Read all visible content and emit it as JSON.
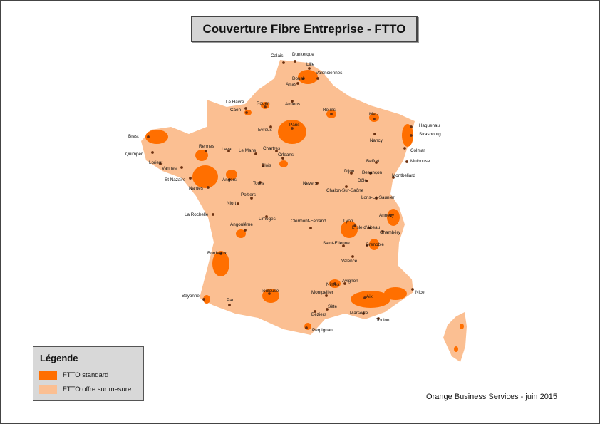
{
  "title": "Couverture Fibre Entreprise - FTTO",
  "legend": {
    "title": "Légende",
    "items": [
      {
        "label": "FTTO standard",
        "color": "#ff6f00"
      },
      {
        "label": "FTTO offre sur mesure",
        "color": "#fbbf92"
      }
    ]
  },
  "footer": "Orange Business Services - juin 2015",
  "map_colors": {
    "standard": "#ff6f00",
    "sur_mesure": "#fbbf92",
    "city_dot": "#6b3010"
  },
  "cities": [
    {
      "name": "Calais"
    },
    {
      "name": "Dunkerque"
    },
    {
      "name": "Lille"
    },
    {
      "name": "Valenciennes"
    },
    {
      "name": "Douai"
    },
    {
      "name": "Arras"
    },
    {
      "name": "Le Havre"
    },
    {
      "name": "Rouen"
    },
    {
      "name": "Amiens"
    },
    {
      "name": "Caen"
    },
    {
      "name": "Reims"
    },
    {
      "name": "Metz"
    },
    {
      "name": "Haguenau"
    },
    {
      "name": "Strasbourg"
    },
    {
      "name": "Brest"
    },
    {
      "name": "Evreux"
    },
    {
      "name": "Paris"
    },
    {
      "name": "Nancy"
    },
    {
      "name": "Colmar"
    },
    {
      "name": "Mulhouse"
    },
    {
      "name": "Quimper"
    },
    {
      "name": "Rennes"
    },
    {
      "name": "Laval"
    },
    {
      "name": "Le Mans"
    },
    {
      "name": "Chartres"
    },
    {
      "name": "Orleans"
    },
    {
      "name": "Belfort"
    },
    {
      "name": "Lorient"
    },
    {
      "name": "Vannes"
    },
    {
      "name": "Blois"
    },
    {
      "name": "Dijon"
    },
    {
      "name": "Besançon"
    },
    {
      "name": "Montbeliard"
    },
    {
      "name": "St Nazaire"
    },
    {
      "name": "Angers"
    },
    {
      "name": "Tours"
    },
    {
      "name": "Nevers"
    },
    {
      "name": "Dôle"
    },
    {
      "name": "Nantes"
    },
    {
      "name": "Chalon-Sur-Saône"
    },
    {
      "name": "Poitiers"
    },
    {
      "name": "Lons-Le-Saunier"
    },
    {
      "name": "Niort"
    },
    {
      "name": "La Rochelle"
    },
    {
      "name": "Limoges"
    },
    {
      "name": "Annecy"
    },
    {
      "name": "Clermont-Ferrand"
    },
    {
      "name": "Lyon"
    },
    {
      "name": "Angoulême"
    },
    {
      "name": "L'Isle d'Abeau"
    },
    {
      "name": "Chambéry"
    },
    {
      "name": "Saint-Etienne"
    },
    {
      "name": "Grenoble"
    },
    {
      "name": "Bordeaux"
    },
    {
      "name": "Valence"
    },
    {
      "name": "Avignon"
    },
    {
      "name": "Nîmes"
    },
    {
      "name": "Bayonne"
    },
    {
      "name": "Toulouse"
    },
    {
      "name": "Montpellier"
    },
    {
      "name": "Nice"
    },
    {
      "name": "Aix"
    },
    {
      "name": "Pau"
    },
    {
      "name": "Sète"
    },
    {
      "name": "Beziers"
    },
    {
      "name": "Marseille"
    },
    {
      "name": "Toulon"
    },
    {
      "name": "Perpignan"
    }
  ]
}
